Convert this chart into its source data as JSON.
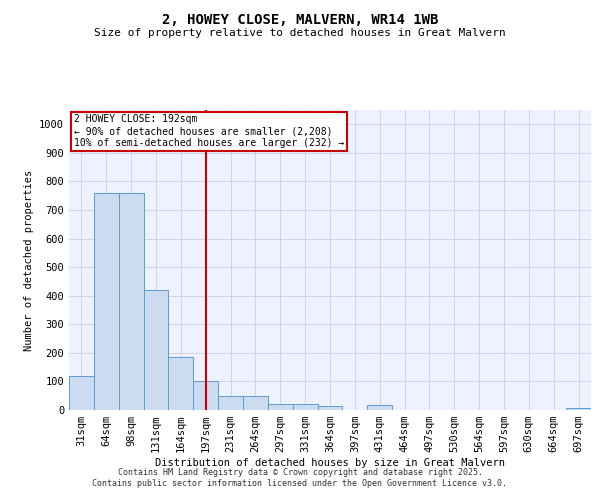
{
  "title": "2, HOWEY CLOSE, MALVERN, WR14 1WB",
  "subtitle": "Size of property relative to detached houses in Great Malvern",
  "xlabel": "Distribution of detached houses by size in Great Malvern",
  "ylabel": "Number of detached properties",
  "categories": [
    "31sqm",
    "64sqm",
    "98sqm",
    "131sqm",
    "164sqm",
    "197sqm",
    "231sqm",
    "264sqm",
    "297sqm",
    "331sqm",
    "364sqm",
    "397sqm",
    "431sqm",
    "464sqm",
    "497sqm",
    "530sqm",
    "564sqm",
    "597sqm",
    "630sqm",
    "664sqm",
    "697sqm"
  ],
  "bar_values": [
    120,
    760,
    760,
    420,
    185,
    100,
    50,
    50,
    22,
    22,
    14,
    0,
    18,
    0,
    0,
    0,
    0,
    0,
    0,
    0,
    8
  ],
  "bar_color": "#ccdcf0",
  "bar_edge_color": "#5b9bd5",
  "vline_pos": 5,
  "vline_color": "#cc0000",
  "annotation_line1": "2 HOWEY CLOSE: 192sqm",
  "annotation_line2": "← 90% of detached houses are smaller (2,208)",
  "annotation_line3": "10% of semi-detached houses are larger (232) →",
  "annotation_box_facecolor": "#ffffff",
  "annotation_box_edgecolor": "#cc0000",
  "ylim": [
    0,
    1050
  ],
  "yticks": [
    0,
    100,
    200,
    300,
    400,
    500,
    600,
    700,
    800,
    900,
    1000
  ],
  "plot_bg_color": "#eef2ff",
  "grid_color": "#c8d0e8",
  "footer_line1": "Contains HM Land Registry data © Crown copyright and database right 2025.",
  "footer_line2": "Contains public sector information licensed under the Open Government Licence v3.0.",
  "title_fontsize": 10,
  "subtitle_fontsize": 8,
  "axis_label_fontsize": 7.5,
  "tick_fontsize": 7.5,
  "annot_fontsize": 7,
  "footer_fontsize": 6
}
